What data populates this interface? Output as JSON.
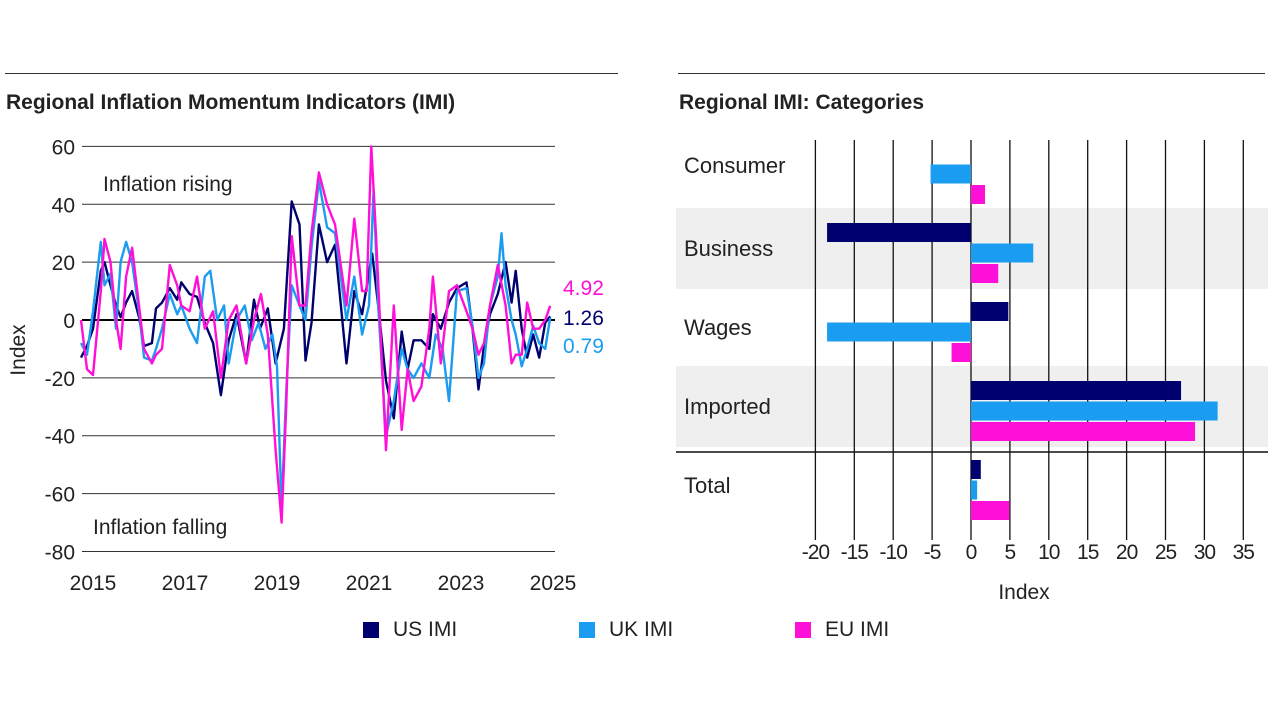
{
  "colors": {
    "US": "#00006e",
    "UK": "#1a9cf0",
    "EU": "#ff10d8"
  },
  "legend": [
    {
      "key": "US",
      "label": "US IMI"
    },
    {
      "key": "UK",
      "label": "UK IMI"
    },
    {
      "key": "EU",
      "label": "EU IMI"
    }
  ],
  "chart_data": [
    {
      "type": "line",
      "title": "Regional Inflation Momentum Indicators (IMI)",
      "xlabel": "",
      "ylabel": "Index",
      "xlim": [
        2015,
        2025
      ],
      "ylim": [
        -80,
        60
      ],
      "xticks": [
        "2015",
        "2017",
        "2019",
        "2021",
        "2023",
        "2025"
      ],
      "yticks": [
        "60",
        "40",
        "20",
        "0",
        "-20",
        "-40",
        "-60",
        "-80"
      ],
      "grid": "horizontal",
      "annotations": {
        "rising": "Inflation rising",
        "falling": "Inflation falling"
      },
      "end_labels": {
        "EU": "4.92",
        "US": "1.26",
        "UK": "0.79"
      },
      "series": [
        {
          "name": "US IMI",
          "key": "US",
          "points": [
            [
              2014.74,
              -13
            ],
            [
              2014.87,
              -9
            ],
            [
              2015.0,
              -3
            ],
            [
              2015.17,
              17
            ],
            [
              2015.25,
              20
            ],
            [
              2015.38,
              12
            ],
            [
              2015.5,
              5
            ],
            [
              2015.6,
              1
            ],
            [
              2015.72,
              6
            ],
            [
              2015.85,
              10
            ],
            [
              2016.0,
              1
            ],
            [
              2016.11,
              -9
            ],
            [
              2016.28,
              -8
            ],
            [
              2016.37,
              4
            ],
            [
              2016.5,
              6
            ],
            [
              2016.67,
              11
            ],
            [
              2016.83,
              7
            ],
            [
              2016.92,
              13
            ],
            [
              2017.1,
              9
            ],
            [
              2017.26,
              8
            ],
            [
              2017.43,
              -1
            ],
            [
              2017.61,
              -8
            ],
            [
              2017.78,
              -26
            ],
            [
              2017.95,
              -7
            ],
            [
              2018.12,
              2
            ],
            [
              2018.33,
              -15
            ],
            [
              2018.5,
              7
            ],
            [
              2018.63,
              -3
            ],
            [
              2018.8,
              4
            ],
            [
              2018.97,
              -15
            ],
            [
              2019.15,
              -3
            ],
            [
              2019.32,
              41
            ],
            [
              2019.49,
              33
            ],
            [
              2019.62,
              -14
            ],
            [
              2019.75,
              -1
            ],
            [
              2019.91,
              33
            ],
            [
              2020.09,
              20
            ],
            [
              2020.26,
              26
            ],
            [
              2020.51,
              -15
            ],
            [
              2020.68,
              10
            ],
            [
              2020.85,
              2
            ],
            [
              2021.07,
              23
            ],
            [
              2021.2,
              5
            ],
            [
              2021.37,
              -21
            ],
            [
              2021.54,
              -34
            ],
            [
              2021.71,
              -4
            ],
            [
              2021.84,
              -17
            ],
            [
              2021.97,
              -7
            ],
            [
              2022.14,
              -7
            ],
            [
              2022.31,
              -10
            ],
            [
              2022.39,
              2
            ],
            [
              2022.56,
              -3
            ],
            [
              2022.74,
              6
            ],
            [
              2022.91,
              11
            ],
            [
              2023.12,
              13
            ],
            [
              2023.25,
              -3
            ],
            [
              2023.38,
              -24
            ],
            [
              2023.5,
              -9
            ],
            [
              2023.63,
              2
            ],
            [
              2023.8,
              9
            ],
            [
              2023.97,
              20
            ],
            [
              2024.1,
              6
            ],
            [
              2024.19,
              17
            ],
            [
              2024.32,
              -3
            ],
            [
              2024.44,
              -13
            ],
            [
              2024.57,
              -5
            ],
            [
              2024.7,
              -13
            ],
            [
              2024.83,
              -1
            ],
            [
              2024.94,
              1.26
            ]
          ]
        },
        {
          "name": "UK IMI",
          "key": "UK",
          "points": [
            [
              2014.74,
              -8
            ],
            [
              2014.87,
              -12
            ],
            [
              2015.0,
              3
            ],
            [
              2015.17,
              27
            ],
            [
              2015.25,
              12
            ],
            [
              2015.38,
              16
            ],
            [
              2015.5,
              -3
            ],
            [
              2015.6,
              20
            ],
            [
              2015.72,
              27
            ],
            [
              2015.85,
              20
            ],
            [
              2016.0,
              3
            ],
            [
              2016.11,
              -13
            ],
            [
              2016.28,
              -14
            ],
            [
              2016.37,
              -10
            ],
            [
              2016.5,
              -3
            ],
            [
              2016.67,
              9
            ],
            [
              2016.83,
              2
            ],
            [
              2016.92,
              5
            ],
            [
              2017.1,
              -3
            ],
            [
              2017.26,
              -8
            ],
            [
              2017.43,
              15
            ],
            [
              2017.55,
              17
            ],
            [
              2017.7,
              0
            ],
            [
              2017.85,
              5
            ],
            [
              2017.95,
              -15
            ],
            [
              2018.12,
              0
            ],
            [
              2018.3,
              5
            ],
            [
              2018.45,
              -7
            ],
            [
              2018.6,
              -1
            ],
            [
              2018.75,
              -10
            ],
            [
              2018.9,
              -5
            ],
            [
              2019.0,
              -16
            ],
            [
              2019.1,
              -65
            ],
            [
              2019.2,
              -25
            ],
            [
              2019.32,
              12
            ],
            [
              2019.49,
              5
            ],
            [
              2019.62,
              0
            ],
            [
              2019.75,
              25
            ],
            [
              2019.91,
              48
            ],
            [
              2020.09,
              32
            ],
            [
              2020.26,
              30
            ],
            [
              2020.51,
              0
            ],
            [
              2020.68,
              15
            ],
            [
              2020.85,
              -5
            ],
            [
              2021.0,
              5
            ],
            [
              2021.1,
              45
            ],
            [
              2021.2,
              5
            ],
            [
              2021.37,
              -40
            ],
            [
              2021.54,
              -28
            ],
            [
              2021.71,
              -10
            ],
            [
              2021.84,
              -17
            ],
            [
              2021.97,
              -20
            ],
            [
              2022.14,
              -15
            ],
            [
              2022.31,
              -20
            ],
            [
              2022.45,
              -5
            ],
            [
              2022.6,
              -10
            ],
            [
              2022.74,
              -28
            ],
            [
              2022.91,
              10
            ],
            [
              2023.12,
              11
            ],
            [
              2023.25,
              -2
            ],
            [
              2023.38,
              -20
            ],
            [
              2023.5,
              -15
            ],
            [
              2023.63,
              5
            ],
            [
              2023.8,
              15
            ],
            [
              2023.88,
              30
            ],
            [
              2023.97,
              12
            ],
            [
              2024.1,
              0
            ],
            [
              2024.19,
              -5
            ],
            [
              2024.32,
              -16
            ],
            [
              2024.44,
              -10
            ],
            [
              2024.57,
              -2
            ],
            [
              2024.7,
              -8
            ],
            [
              2024.83,
              -10
            ],
            [
              2024.94,
              0.79
            ]
          ]
        },
        {
          "name": "EU IMI",
          "key": "EU",
          "points": [
            [
              2014.74,
              0
            ],
            [
              2014.87,
              -17
            ],
            [
              2015.0,
              -19
            ],
            [
              2015.17,
              10
            ],
            [
              2015.25,
              28
            ],
            [
              2015.38,
              20
            ],
            [
              2015.5,
              0
            ],
            [
              2015.6,
              -10
            ],
            [
              2015.72,
              15
            ],
            [
              2015.85,
              25
            ],
            [
              2016.0,
              5
            ],
            [
              2016.11,
              -10
            ],
            [
              2016.28,
              -15
            ],
            [
              2016.37,
              -12
            ],
            [
              2016.5,
              -10
            ],
            [
              2016.67,
              19
            ],
            [
              2016.83,
              12
            ],
            [
              2016.92,
              5
            ],
            [
              2017.1,
              3
            ],
            [
              2017.26,
              15
            ],
            [
              2017.43,
              -3
            ],
            [
              2017.61,
              3
            ],
            [
              2017.78,
              -20
            ],
            [
              2017.95,
              0
            ],
            [
              2018.12,
              5
            ],
            [
              2018.33,
              -15
            ],
            [
              2018.5,
              0
            ],
            [
              2018.65,
              9
            ],
            [
              2018.8,
              -5
            ],
            [
              2018.97,
              -45
            ],
            [
              2019.1,
              -70
            ],
            [
              2019.2,
              -30
            ],
            [
              2019.32,
              29
            ],
            [
              2019.49,
              5
            ],
            [
              2019.62,
              5
            ],
            [
              2019.75,
              30
            ],
            [
              2019.91,
              51
            ],
            [
              2020.09,
              40
            ],
            [
              2020.26,
              33
            ],
            [
              2020.51,
              5
            ],
            [
              2020.68,
              35
            ],
            [
              2020.85,
              10
            ],
            [
              2020.95,
              10
            ],
            [
              2021.05,
              60
            ],
            [
              2021.15,
              30
            ],
            [
              2021.37,
              -45
            ],
            [
              2021.54,
              5
            ],
            [
              2021.71,
              -38
            ],
            [
              2021.84,
              -17
            ],
            [
              2021.97,
              -28
            ],
            [
              2022.14,
              -23
            ],
            [
              2022.31,
              -3
            ],
            [
              2022.39,
              15
            ],
            [
              2022.56,
              -15
            ],
            [
              2022.74,
              10
            ],
            [
              2022.91,
              12
            ],
            [
              2023.12,
              3
            ],
            [
              2023.25,
              -3
            ],
            [
              2023.38,
              -12
            ],
            [
              2023.5,
              -8
            ],
            [
              2023.63,
              5
            ],
            [
              2023.8,
              19
            ],
            [
              2023.97,
              5
            ],
            [
              2024.1,
              -15
            ],
            [
              2024.19,
              -12
            ],
            [
              2024.32,
              -12
            ],
            [
              2024.44,
              6
            ],
            [
              2024.57,
              -3
            ],
            [
              2024.7,
              -3
            ],
            [
              2024.83,
              0
            ],
            [
              2024.94,
              4.92
            ]
          ]
        }
      ]
    },
    {
      "type": "bar",
      "orientation": "horizontal",
      "title": "Regional IMI: Categories",
      "xlabel": "Index",
      "xlim": [
        -20,
        35
      ],
      "xticks": [
        "-20",
        "-15",
        "-10",
        "-5",
        "0",
        "5",
        "10",
        "15",
        "20",
        "25",
        "30",
        "35"
      ],
      "categories": [
        "Consumer",
        "Business",
        "Wages",
        "Imported",
        "Total"
      ],
      "series": [
        {
          "name": "US IMI",
          "key": "US",
          "values": [
            0,
            -18.5,
            4.8,
            27.0,
            1.26
          ]
        },
        {
          "name": "UK IMI",
          "key": "UK",
          "values": [
            -5.2,
            8.0,
            -18.5,
            31.7,
            0.79
          ]
        },
        {
          "name": "EU IMI",
          "key": "EU",
          "values": [
            1.8,
            3.5,
            -2.5,
            28.8,
            4.92
          ]
        }
      ]
    }
  ]
}
